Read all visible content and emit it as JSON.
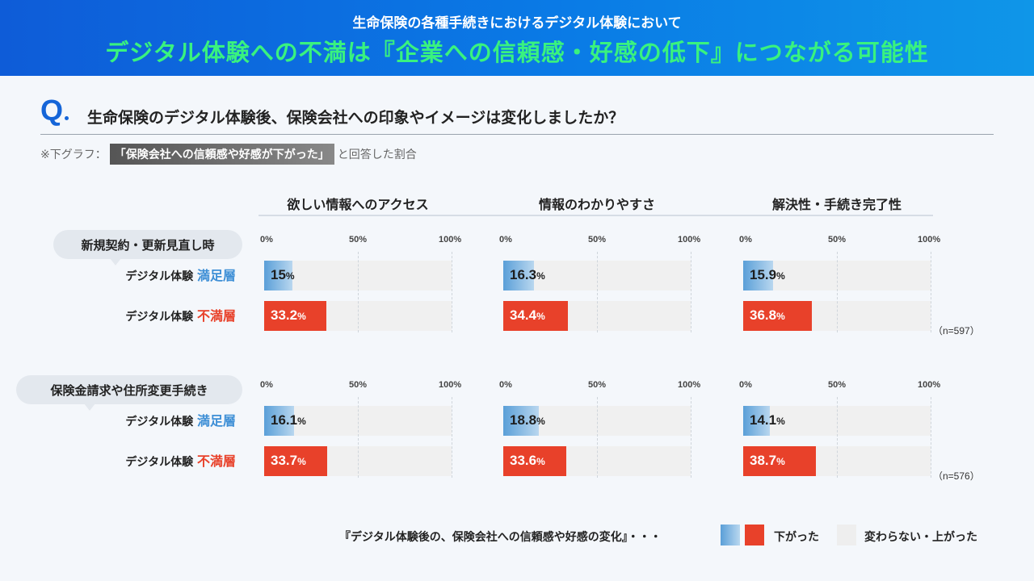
{
  "header": {
    "subtitle": "生命保険の各種手続きにおけるデジタル体験において",
    "title": "デジタル体験への不満は『企業への信頼感・好感の低下』につながる可能性"
  },
  "question": {
    "mark": "Q",
    "text": "生命保険のデジタル体験後、保険会社への印象やイメージは変化しましたか？",
    "note_prefix": "※下グラフ：",
    "note_highlight": "「保険会社への信頼感や好感が下がった」",
    "note_suffix": "と回答した割合"
  },
  "row_labels": {
    "prefix": "デジタル体験",
    "satisfied": "満足層",
    "dissatisfied": "不満層"
  },
  "legend": {
    "caption": "『デジタル体験後の、保険会社への信頼感や好感の変化』・・・",
    "down": "下がった",
    "other": "変わらない・上がった"
  },
  "colors": {
    "satisfied_accent": "#3e8fd6",
    "dissatisfied_accent": "#e8412a",
    "track": "#f0f0f0",
    "banner_title": "#39f27f"
  },
  "chart_data": {
    "type": "bar",
    "orientation": "horizontal",
    "unit": "%",
    "xlim": [
      0,
      100
    ],
    "ticks": [
      "0%",
      "50%",
      "100%"
    ],
    "columns": [
      "欲しい情報へのアクセス",
      "情報のわかりやすさ",
      "解決性・手続き完了性"
    ],
    "groups": [
      {
        "name": "新規契約・更新見直し時",
        "n_label": "（n=597）",
        "series": [
          {
            "name": "デジタル体験 満足層",
            "values": [
              15,
              16.3,
              15.9
            ]
          },
          {
            "name": "デジタル体験 不満層",
            "values": [
              33.2,
              34.4,
              36.8
            ]
          }
        ]
      },
      {
        "name": "保険金請求や住所変更手続き",
        "n_label": "（n=576）",
        "series": [
          {
            "name": "デジタル体験 満足層",
            "values": [
              16.1,
              18.8,
              14.1
            ]
          },
          {
            "name": "デジタル体験 不満層",
            "values": [
              33.7,
              33.6,
              38.7
            ]
          }
        ]
      }
    ]
  }
}
